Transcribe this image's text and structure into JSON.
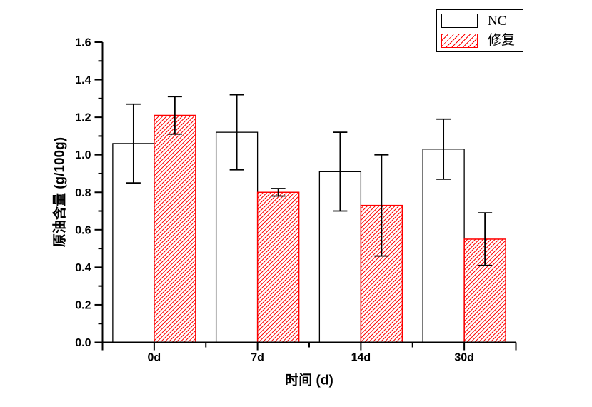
{
  "chart_data": {
    "type": "bar",
    "title": "",
    "categories": [
      "0d",
      "7d",
      "14d",
      "30d"
    ],
    "series": [
      {
        "name": "NC",
        "values": [
          1.06,
          1.12,
          0.91,
          1.03
        ],
        "errors": [
          0.21,
          0.2,
          0.21,
          0.16
        ],
        "fill": "#ffffff",
        "stroke": "#000000",
        "hatch": false
      },
      {
        "name": "修复",
        "values": [
          1.21,
          0.8,
          0.73,
          0.55
        ],
        "errors": [
          0.1,
          0.02,
          0.27,
          0.14
        ],
        "fill": "hatch",
        "stroke": "#ff0000",
        "hatch": true
      }
    ],
    "xlabel": "时间 (d)",
    "ylabel": "原油含量 (g/100g)",
    "ylim": [
      0,
      1.6
    ],
    "y_major_step": 0.2,
    "y_minor_step": 0.1,
    "y_tick_labels": [
      "0.0",
      "0.2",
      "0.4",
      "0.6",
      "0.8",
      "1.0",
      "1.2",
      "1.4",
      "1.6"
    ],
    "grid": false,
    "legend_position": "top-right",
    "error_bar_color": "#000000",
    "hatch_color": "#ff0000",
    "axis_color": "#000000"
  },
  "legend": {
    "items": [
      {
        "label": "NC",
        "swatch": "white-box"
      },
      {
        "label": "修复",
        "swatch": "red-hatch-box"
      }
    ]
  }
}
